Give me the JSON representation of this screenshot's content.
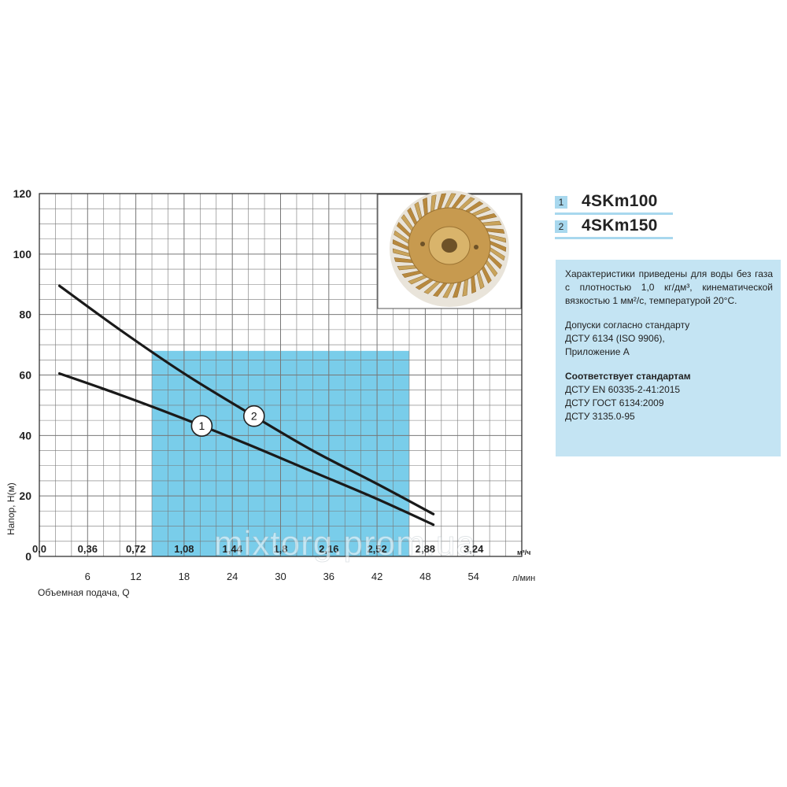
{
  "chart_data": {
    "type": "line",
    "title": "",
    "xlabel": "Объемная подача, Q",
    "ylabel": "Напор, H(м)",
    "xlim": [
      0,
      60
    ],
    "ylim": [
      0,
      120
    ],
    "grid": true,
    "y_ticks": [
      "0",
      "20",
      "40",
      "60",
      "80",
      "100",
      "120"
    ],
    "x_ticks_lmin": [
      "6",
      "12",
      "18",
      "24",
      "30",
      "36",
      "42",
      "48",
      "54"
    ],
    "x_ticks_m3h": [
      "0,0",
      "0,36",
      "0,72",
      "1,08",
      "1,44",
      "1,8",
      "2,16",
      "2,52",
      "2,88",
      "3,24"
    ],
    "x_unit_lmin": "л/мин",
    "x_unit_m3h": "м³/ч",
    "operating_range_lmin": [
      14,
      46
    ],
    "series": [
      {
        "name": "4SKm100",
        "label": "1",
        "x": [
          2.5,
          10,
          18,
          26,
          34,
          42,
          49
        ],
        "y": [
          60.5,
          53.5,
          45.5,
          37,
          28,
          19,
          10.5
        ]
      },
      {
        "name": "4SKm150",
        "label": "2",
        "x": [
          2.5,
          10,
          18,
          26,
          34,
          42,
          49
        ],
        "y": [
          89.5,
          75,
          60.5,
          47.5,
          35,
          24,
          14
        ]
      }
    ],
    "colors": {
      "curve": "#1a1a1a",
      "range_fill": "#79cdea",
      "grid": "#777777"
    }
  },
  "legend": [
    {
      "num": "1",
      "name": "4SKm100"
    },
    {
      "num": "2",
      "name": "4SKm150"
    }
  ],
  "info": {
    "description": "Характеристики приведены для воды без газа с плотностью 1,0 кг/дм³, кинематической вязкостью 1 мм²/с, температурой 20°С.",
    "tolerance_lines": [
      "Допуски согласно стандарту",
      "ДСТУ 6134 (ISO 9906),",
      "Приложение А"
    ],
    "standards_title": "Соответствует стандартам",
    "standards": [
      "ДСТУ EN 60335-2-41:2015",
      "ДСТУ ГОСТ 6134:2009",
      "ДСТУ 3135.0-95"
    ]
  },
  "image": {
    "subject": "impeller-photo",
    "color": "#c9a45c"
  },
  "watermark": "mixtorg.prom.ua"
}
